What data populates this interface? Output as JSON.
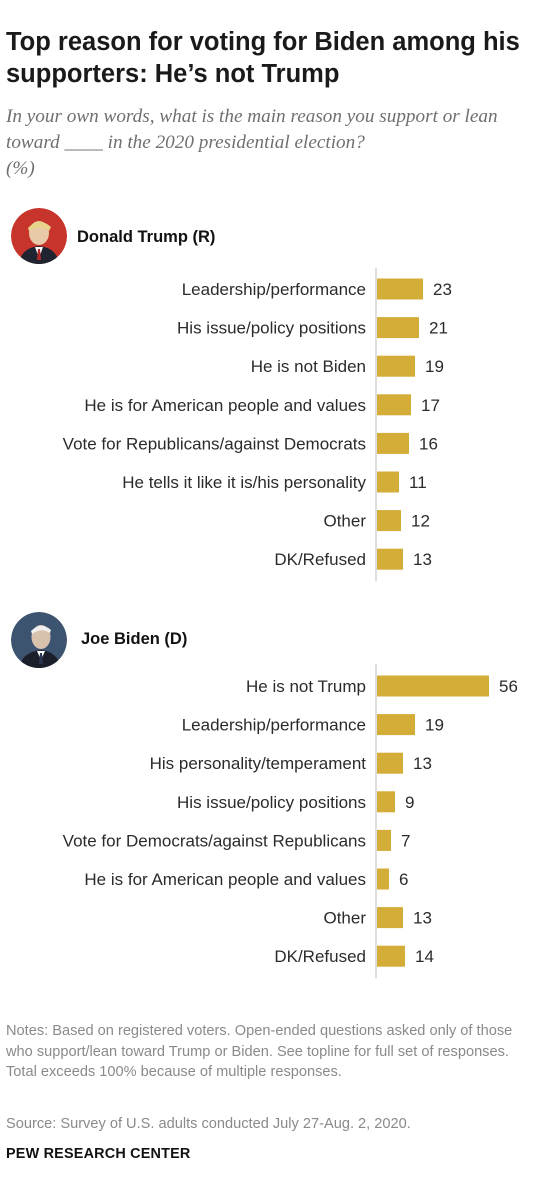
{
  "header": {
    "title": "Top reason for voting for Biden among his supporters: He’s not Trump",
    "subtitle": "In your own words, what is the main reason you support or lean toward ____ in the 2020 presidential election?",
    "unit": "(%)"
  },
  "colors": {
    "bar": "#d4ac38",
    "axis": "#bdbdbd",
    "trump_avatar_bg": "#c7342b",
    "biden_avatar_bg": "#3d5470"
  },
  "chart_data": [
    {
      "type": "bar",
      "orientation": "horizontal",
      "title": "Donald Trump (R)",
      "avatar_icon": "trump-portrait-icon",
      "categories": [
        "Leadership/performance",
        "His issue/policy positions",
        "He is not Biden",
        "He is for American people and values",
        "Vote for Republicans/against Democrats",
        "He tells it like it is/his personality",
        "Other",
        "DK/Refused"
      ],
      "values": [
        23,
        21,
        19,
        17,
        16,
        11,
        12,
        13
      ],
      "xlim": [
        0,
        56
      ]
    },
    {
      "type": "bar",
      "orientation": "horizontal",
      "title": "Joe Biden (D)",
      "avatar_icon": "biden-portrait-icon",
      "categories": [
        "He is not Trump",
        "Leadership/performance",
        "His personality/temperament",
        "His issue/policy positions",
        "Vote for Democrats/against Republicans",
        "He is for American people and values",
        "Other",
        "DK/Refused"
      ],
      "values": [
        56,
        19,
        13,
        9,
        7,
        6,
        13,
        14
      ],
      "xlim": [
        0,
        56
      ]
    }
  ],
  "footer": {
    "notes": "Notes: Based on registered voters. Open-ended questions asked only of those who support/lean toward Trump or Biden. See topline for full set of responses. Total exceeds 100% because of multiple responses.",
    "source": "Source: Survey of U.S. adults conducted July 27-Aug. 2, 2020.",
    "brand": "PEW RESEARCH CENTER"
  }
}
